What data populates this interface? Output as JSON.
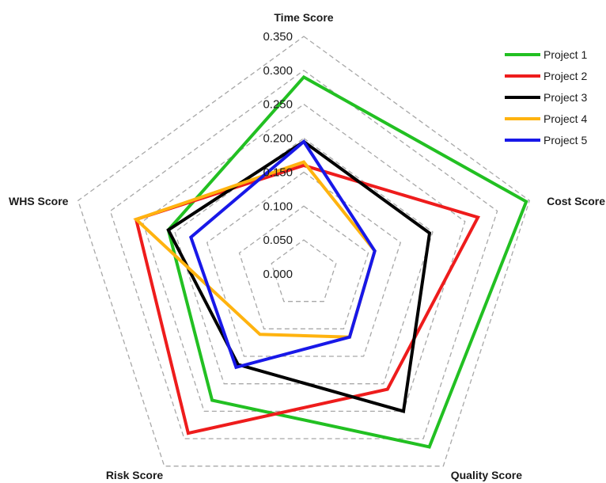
{
  "chart_data": {
    "type": "radar",
    "axes": [
      "Time Score",
      "Cost Score",
      "Quality Score",
      "Risk Score",
      "WHS Score"
    ],
    "rlim": [
      0,
      0.35
    ],
    "ticks": [
      "0.000",
      "0.050",
      "0.100",
      "0.150",
      "0.200",
      "0.250",
      "0.300",
      "0.350"
    ],
    "tick_values": [
      0,
      0.05,
      0.1,
      0.15,
      0.2,
      0.25,
      0.3,
      0.35
    ],
    "grid": true,
    "legend_position": "top-right",
    "series": [
      {
        "name": "Project 1",
        "color": "#22c022",
        "values": [
          0.29,
          0.345,
          0.315,
          0.23,
          0.21
        ]
      },
      {
        "name": "Project 2",
        "color": "#ee1c1c",
        "values": [
          0.16,
          0.27,
          0.21,
          0.29,
          0.26
        ]
      },
      {
        "name": "Project 3",
        "color": "#000000",
        "values": [
          0.195,
          0.195,
          0.25,
          0.165,
          0.21
        ]
      },
      {
        "name": "Project 4",
        "color": "#ffb30f",
        "values": [
          0.165,
          0.11,
          0.115,
          0.11,
          0.26
        ]
      },
      {
        "name": "Project 5",
        "color": "#1818e8",
        "values": [
          0.195,
          0.11,
          0.115,
          0.17,
          0.175
        ]
      }
    ]
  }
}
